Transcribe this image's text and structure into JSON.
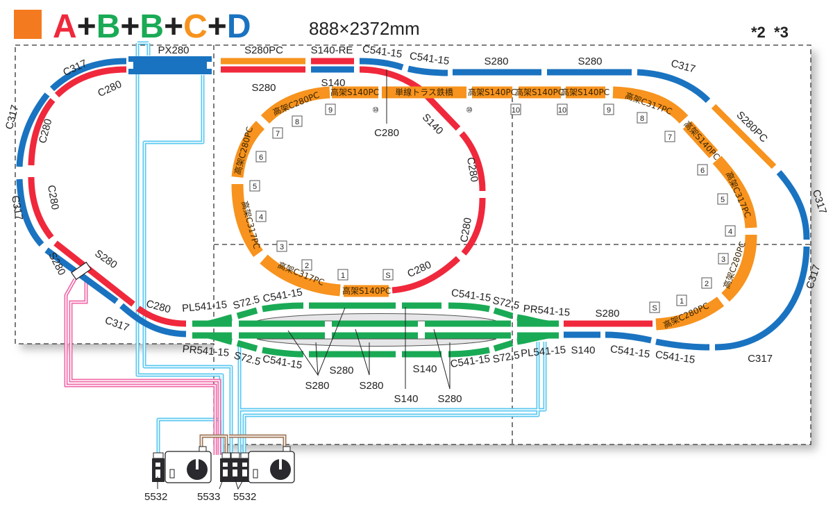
{
  "header": {
    "title_parts": [
      {
        "text": "A",
        "color": "#f0283c"
      },
      {
        "text": "+",
        "color": "#222222"
      },
      {
        "text": "B",
        "color": "#1aaa55"
      },
      {
        "text": "+",
        "color": "#222222"
      },
      {
        "text": "B",
        "color": "#1aaa55"
      },
      {
        "text": "+",
        "color": "#222222"
      },
      {
        "text": "C",
        "color": "#f7931e"
      },
      {
        "text": "+",
        "color": "#222222"
      },
      {
        "text": "D",
        "color": "#1a73c0"
      }
    ],
    "marker_color": "#f47a20",
    "dimensions": "888×2372mm",
    "notes": "*2  *3"
  },
  "colors": {
    "set_a_red": "#f0283c",
    "set_b_green": "#1aaa55",
    "set_c_orange": "#f7931e",
    "set_d_blue": "#1a73c0",
    "feeder_wire": "#5ac8f0",
    "switch_wire": "#f06aa8",
    "power_wire": "#a0785a"
  },
  "track_labels": [
    "PX280",
    "S280PC",
    "S140-RE",
    "C541-15",
    "C541-15",
    "S280",
    "S280",
    "C317",
    "S280PC",
    "C317",
    "C317",
    "C317",
    "C541-15",
    "C541-15",
    "S140",
    "PL541-15",
    "S72.5",
    "C541-15",
    "S140",
    "S280",
    "C541-15",
    "S72.5",
    "PR541-15",
    "S280",
    "S280",
    "S140",
    "S280",
    "C541-15",
    "S72.5",
    "PL541-15",
    "C541-15",
    "S72.5",
    "PR541-15",
    "S280",
    "C280",
    "C317",
    "S280",
    "S280",
    "C317",
    "C280",
    "C280",
    "C317",
    "C317",
    "C280",
    "S280",
    "S140",
    "C280",
    "S140",
    "C280",
    "C280",
    "C280"
  ],
  "elevated_labels": [
    "高架C280PC",
    "高架C280PC",
    "高架C317PC",
    "高架C317PC",
    "高架S140PC",
    "高架S140PC",
    "単線トラス鉄橋",
    "高架S140PC",
    "高架S140PC",
    "高架S140PC",
    "高架C317PC",
    "高架S140PC",
    "高架C317PC",
    "高架C280PC",
    "高架C280PC"
  ],
  "pier_numbers": [
    "9",
    "⑩",
    "8",
    "7",
    "6",
    "5",
    "4",
    "3",
    "2",
    "1",
    "S",
    "⑩",
    "10",
    "10",
    "9",
    "8",
    "7",
    "6",
    "5",
    "4",
    "3",
    "2",
    "1",
    "S"
  ],
  "controllers": {
    "labels": [
      "5532",
      "5533",
      "5532"
    ]
  }
}
